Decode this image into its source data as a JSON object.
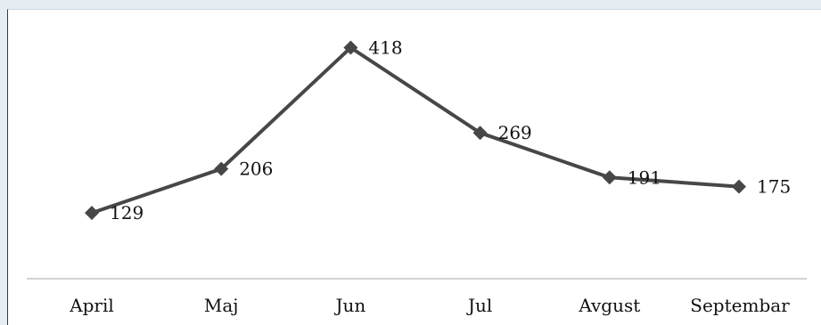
{
  "chart_data": {
    "type": "line",
    "title": "",
    "xlabel": "",
    "ylabel": "",
    "categories": [
      "April",
      "Maj",
      "Jun",
      "Jul",
      "Avgust",
      "Septembar"
    ],
    "series": [
      {
        "values": [
          129,
          206,
          418,
          269,
          191,
          175
        ],
        "color": "#474747",
        "marker": "diamond"
      }
    ],
    "ylim": [
      0,
      450
    ],
    "grid": false,
    "legend": "none",
    "data_labels": true
  }
}
